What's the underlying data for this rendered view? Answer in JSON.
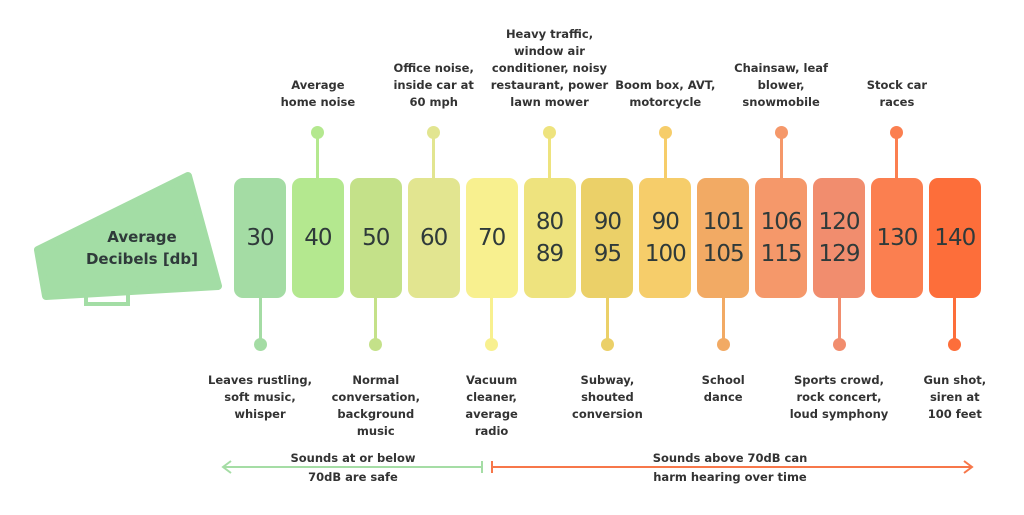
{
  "megaphone": {
    "line1": "Average",
    "line2": "Decibels [db]",
    "color": "#a3dda5"
  },
  "levels": [
    {
      "values": [
        "30"
      ],
      "color": "#a4dca4",
      "label_pos": "bottom",
      "label": [
        "Leaves rustling,",
        "soft music,",
        "whisper"
      ]
    },
    {
      "values": [
        "40"
      ],
      "color": "#b4e88f",
      "label_pos": "top",
      "label": [
        "Average",
        "home noise"
      ]
    },
    {
      "values": [
        "50"
      ],
      "color": "#c4e189",
      "label_pos": "bottom",
      "label": [
        "Normal",
        "conversation,",
        "background",
        "music"
      ]
    },
    {
      "values": [
        "60"
      ],
      "color": "#e2e590",
      "label_pos": "top",
      "label": [
        "Office noise,",
        "inside car at",
        "60 mph"
      ]
    },
    {
      "values": [
        "70"
      ],
      "color": "#f8f08f",
      "label_pos": "bottom",
      "label": [
        "Vacuum",
        "cleaner,",
        "average",
        "radio"
      ]
    },
    {
      "values": [
        "80",
        "89"
      ],
      "color": "#eee37e",
      "label_pos": "top",
      "label": [
        "Heavy traffic,",
        "window air",
        "conditioner, noisy",
        "restaurant, power",
        "lawn mower"
      ]
    },
    {
      "values": [
        "90",
        "95"
      ],
      "color": "#ebd068",
      "label_pos": "bottom",
      "label": [
        "Subway,",
        "shouted",
        "conversion"
      ]
    },
    {
      "values": [
        "90",
        "100"
      ],
      "color": "#f6cd6a",
      "label_pos": "top",
      "label": [
        "Boom box, AVT,",
        "motorcycle"
      ]
    },
    {
      "values": [
        "101",
        "105"
      ],
      "color": "#f2aa64",
      "label_pos": "bottom",
      "label": [
        "School",
        "dance"
      ]
    },
    {
      "values": [
        "106",
        "115"
      ],
      "color": "#f5986a",
      "label_pos": "top",
      "label": [
        "Chainsaw, leaf",
        "blower,",
        "snowmobile"
      ]
    },
    {
      "values": [
        "120",
        "129"
      ],
      "color": "#f18d6e",
      "label_pos": "bottom",
      "label": [
        "Sports crowd,",
        "rock concert,",
        "loud symphony"
      ]
    },
    {
      "values": [
        "130"
      ],
      "color": "#fb7f50",
      "label_pos": "top",
      "label": [
        "Stock car",
        "races"
      ]
    },
    {
      "values": [
        "140"
      ],
      "color": "#fd6e3a",
      "label_pos": "bottom",
      "label": [
        "Gun shot,",
        "siren at",
        "100 feet"
      ]
    }
  ],
  "safe_note": {
    "line1": "Sounds at or below",
    "line2": "70dB are safe",
    "color": "#a5dda5"
  },
  "harm_note": {
    "line1": "Sounds above 70dB can",
    "line2": "harm hearing over time",
    "color": "#f7774a"
  }
}
